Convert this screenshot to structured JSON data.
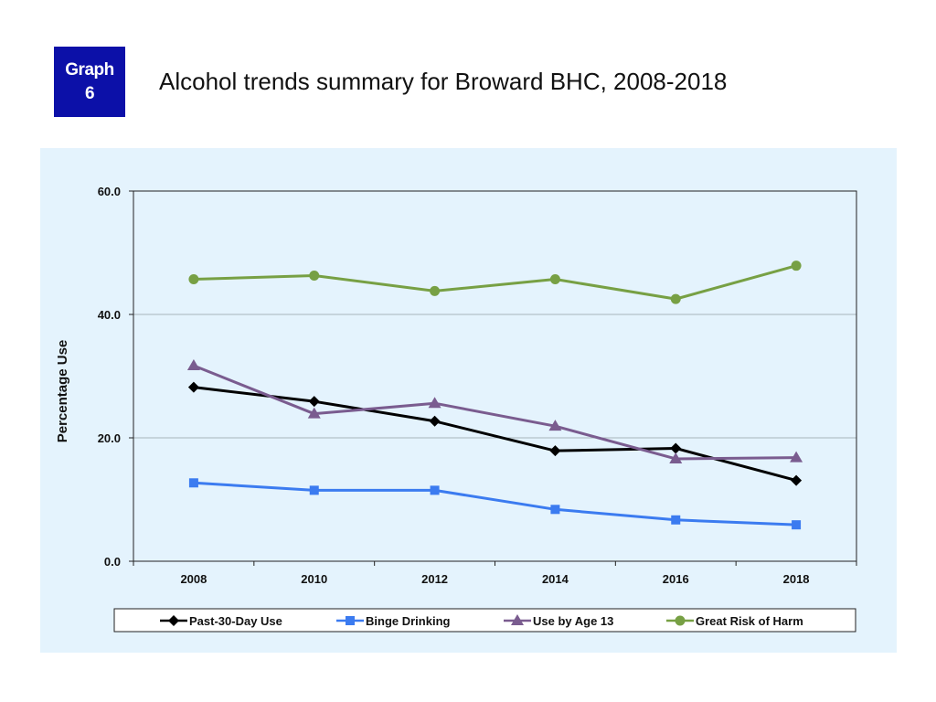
{
  "header": {
    "badge_line1": "Graph",
    "badge_line2": "6",
    "title": "Alcohol trends summary for Broward BHC, 2008-2018"
  },
  "colors": {
    "badge_bg": "#0c10a8",
    "panel_bg": "#e4f3fd"
  },
  "chart_data": {
    "type": "line",
    "title": "Alcohol trends summary for Broward BHC, 2008-2018",
    "xlabel": "",
    "ylabel": "Percentage Use",
    "categories": [
      "2008",
      "2010",
      "2012",
      "2014",
      "2016",
      "2018"
    ],
    "ylim": [
      0,
      60
    ],
    "yticks": [
      "0.0",
      "20.0",
      "40.0",
      "60.0"
    ],
    "grid": true,
    "legend_position": "bottom",
    "series": [
      {
        "name": "Past-30-Day Use",
        "color": "#000000",
        "marker": "diamond",
        "values": [
          28.2,
          25.9,
          22.7,
          17.9,
          18.3,
          13.1
        ]
      },
      {
        "name": "Binge Drinking",
        "color": "#3b7bf0",
        "marker": "square",
        "values": [
          12.7,
          11.5,
          11.5,
          8.4,
          6.7,
          5.9
        ]
      },
      {
        "name": "Use by Age 13",
        "color": "#7a5c8f",
        "marker": "triangle",
        "values": [
          31.7,
          23.9,
          25.6,
          21.9,
          16.6,
          16.8
        ]
      },
      {
        "name": "Great Risk of Harm",
        "color": "#77a044",
        "marker": "circle",
        "values": [
          45.7,
          46.3,
          43.8,
          45.7,
          42.5,
          47.9
        ]
      }
    ]
  }
}
